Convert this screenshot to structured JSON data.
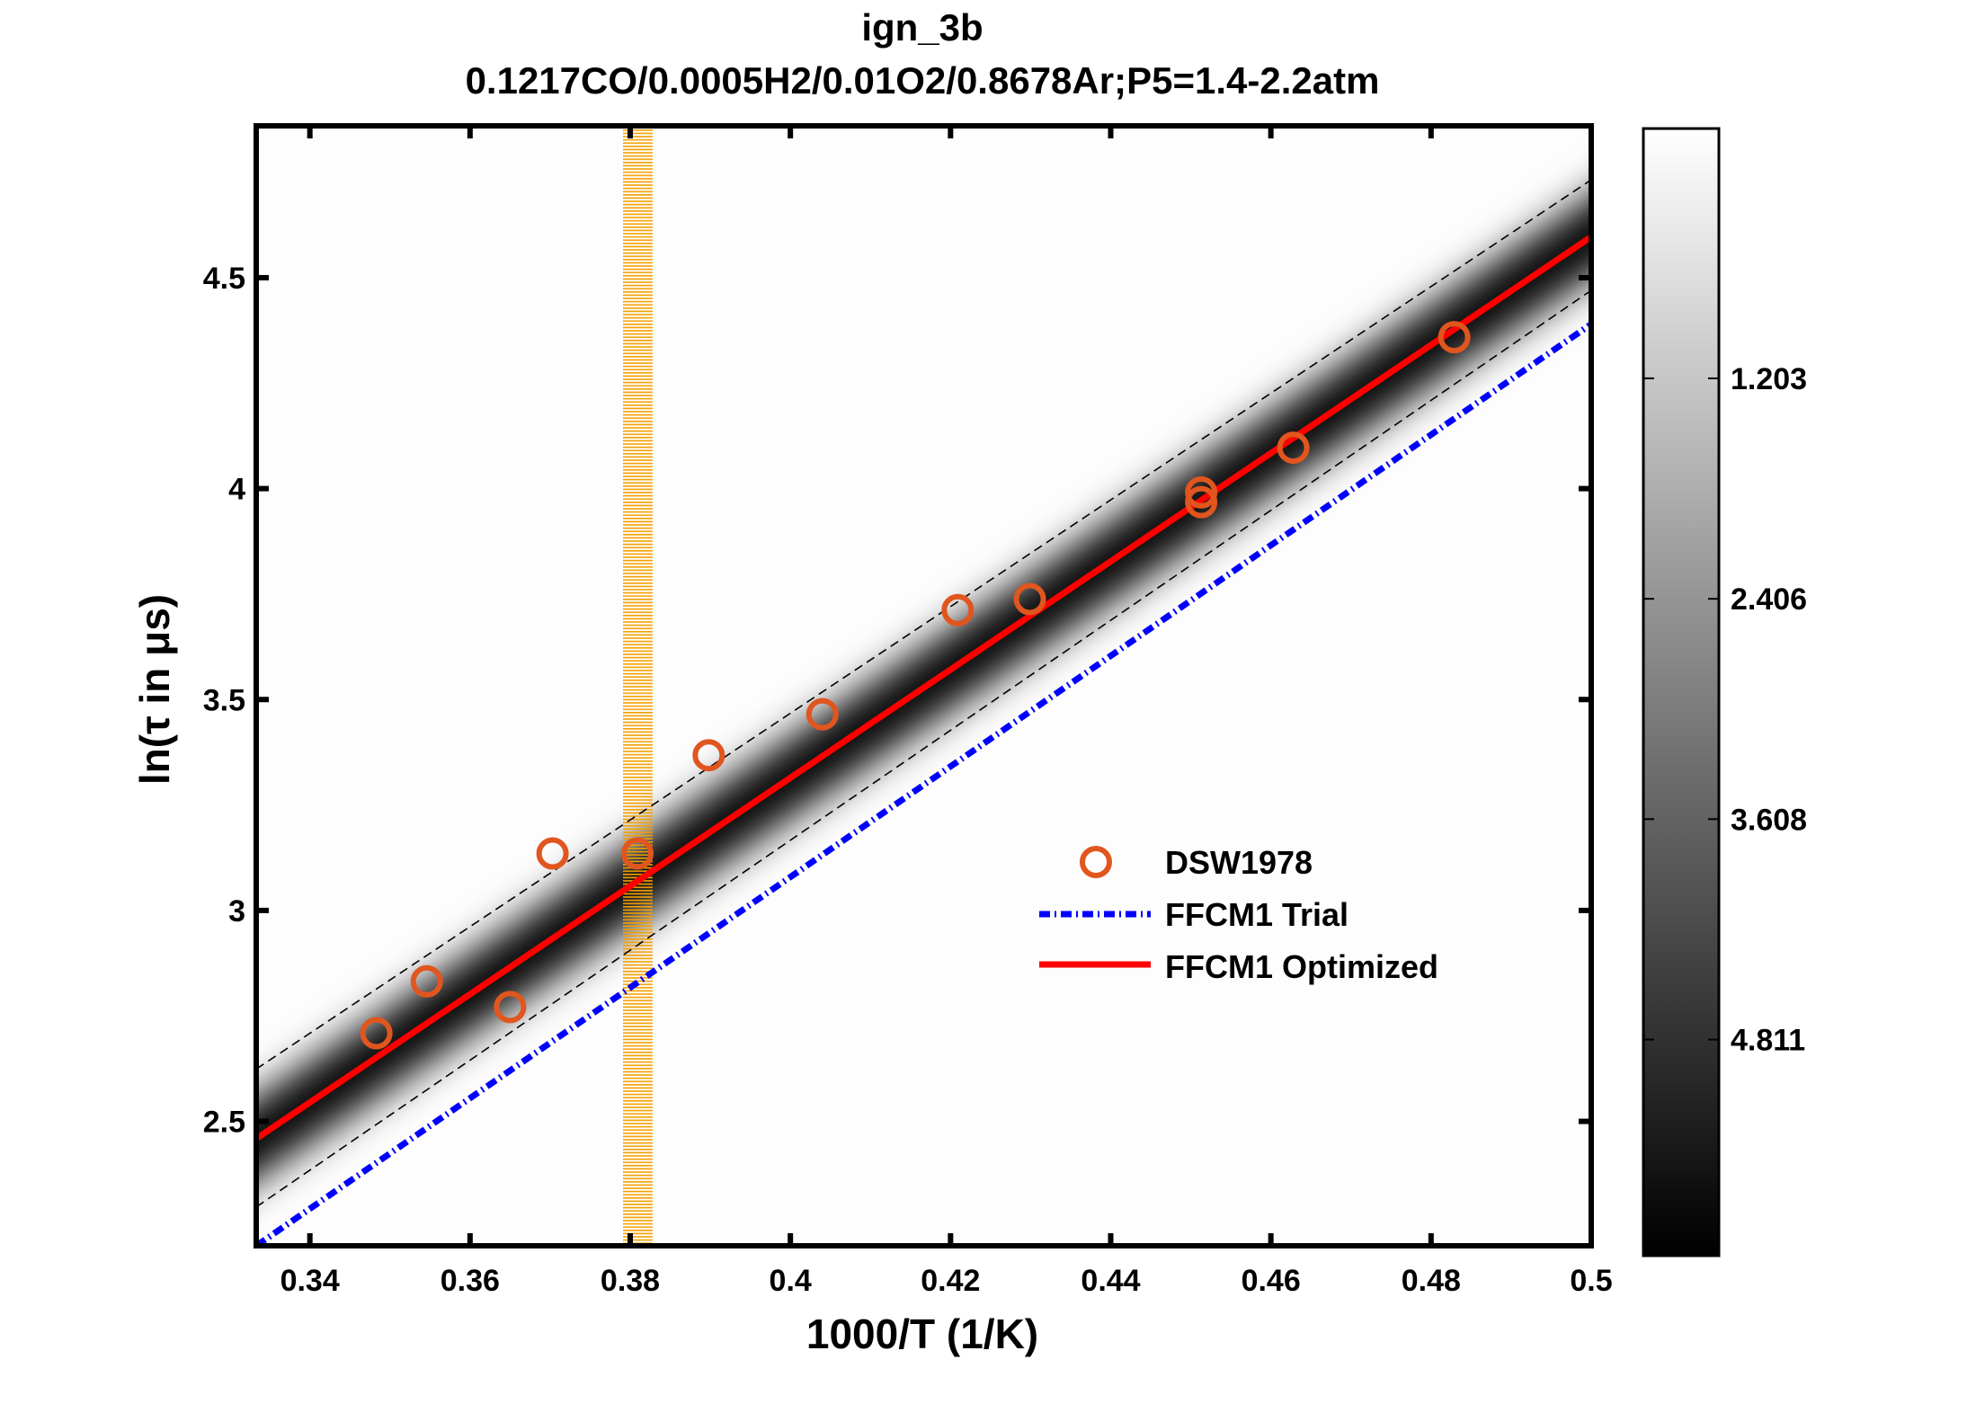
{
  "chart_data": {
    "type": "scatter",
    "title": "ign_3b",
    "subtitle": "0.1217CO/0.0005H2/0.01O2/0.8678Ar;P5=1.4-2.2atm",
    "xlabel": "1000/T (1/K)",
    "ylabel": "ln(τ in μs)",
    "xlim": [
      0.3333,
      0.5
    ],
    "ylim": [
      2.205,
      4.86
    ],
    "xticks": [
      "0.34",
      "0.36",
      "0.38",
      "0.4",
      "0.42",
      "0.44",
      "0.46",
      "0.48",
      "0.5"
    ],
    "yticks": [
      "2.5",
      "3",
      "3.5",
      "4",
      "4.5"
    ],
    "grid": false,
    "legend_position": "lower-right",
    "series": [
      {
        "name": "DSW1978",
        "kind": "markers",
        "marker": "circle",
        "color": "#e0561e",
        "x": [
          0.3483,
          0.3546,
          0.365,
          0.3703,
          0.3809,
          0.3898,
          0.404,
          0.4209,
          0.4299,
          0.4513,
          0.4513,
          0.4628,
          0.4829
        ],
        "y": [
          2.709,
          2.832,
          2.771,
          3.135,
          3.135,
          3.368,
          3.465,
          3.712,
          3.738,
          3.991,
          3.968,
          4.097,
          4.359
        ]
      },
      {
        "name": "FFCM1 Trial",
        "kind": "line",
        "style": "dash-dot",
        "color": "#0000ff",
        "x": [
          0.3333,
          0.5
        ],
        "y": [
          2.205,
          4.39
        ]
      },
      {
        "name": "FFCM1 Optimized",
        "kind": "line",
        "style": "solid",
        "color": "#ff0000",
        "x": [
          0.3333,
          0.5
        ],
        "y": [
          2.459,
          4.597
        ]
      }
    ],
    "uncertainty_bounds": {
      "style": "dashed",
      "color": "#000000",
      "upper": {
        "x": [
          0.3333,
          0.5
        ],
        "y": [
          2.624,
          4.732
        ]
      },
      "lower": {
        "x": [
          0.3333,
          0.5
        ],
        "y": [
          2.297,
          4.47
        ]
      }
    },
    "density_band": {
      "center": "FFCM1 Optimized",
      "colormap": "gray"
    },
    "highlight_band": {
      "x_range": [
        0.3791,
        0.3828
      ],
      "color": "#f5a000",
      "pattern": "horizontal-stripes"
    },
    "colorbar": {
      "clim": [
        -0.16,
        5.99
      ],
      "ticks": [
        "1.203",
        "2.406",
        "3.608",
        "4.811"
      ],
      "tick_values": [
        1.203,
        2.406,
        3.608,
        4.811
      ],
      "colormap": "gray-reversed"
    }
  }
}
